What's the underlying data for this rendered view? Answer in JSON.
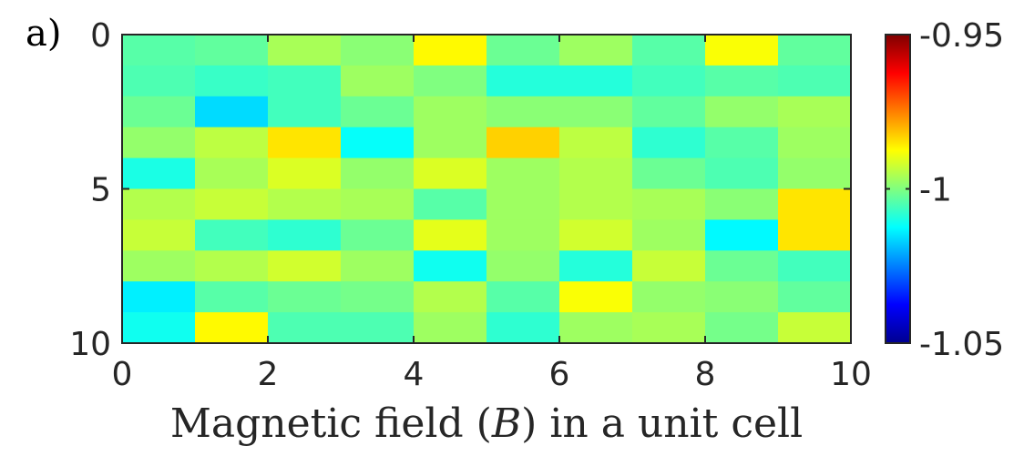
{
  "chart_data": {
    "type": "heatmap",
    "panel_label": "a)",
    "title": "",
    "xlabel": "Magnetic field ",
    "xlabel_var": "B",
    "xlabel_suffix": " in a unit cell",
    "xlim": [
      0,
      10
    ],
    "ylim": [
      0,
      10
    ],
    "y_reversed": true,
    "x_ticks": [
      "0",
      "2",
      "4",
      "6",
      "8",
      "10"
    ],
    "y_ticks": [
      "0",
      "5",
      "10"
    ],
    "colormap": "jet",
    "clim": [
      -1.05,
      -0.95
    ],
    "colorbar_ticks": [
      "-0.95",
      "-1",
      "-1.05"
    ],
    "grid": false,
    "values": [
      [
        -1.004,
        -1.003,
        -0.996,
        -0.999,
        -0.987,
        -1.002,
        -0.997,
        -1.004,
        -0.988,
        -1.003
      ],
      [
        -1.005,
        -1.007,
        -1.006,
        -0.997,
        -1.0,
        -1.009,
        -1.009,
        -1.006,
        -1.004,
        -1.005
      ],
      [
        -1.002,
        -1.016,
        -1.006,
        -1.002,
        -0.997,
        -0.999,
        -0.999,
        -1.003,
        -0.998,
        -0.996
      ],
      [
        -0.998,
        -0.994,
        -0.985,
        -1.012,
        -0.997,
        -0.983,
        -0.994,
        -1.008,
        -1.004,
        -0.997
      ],
      [
        -1.01,
        -0.996,
        -0.991,
        -0.998,
        -0.991,
        -0.997,
        -0.995,
        -1.002,
        -1.005,
        -0.998
      ],
      [
        -0.995,
        -0.993,
        -0.995,
        -0.996,
        -1.004,
        -0.997,
        -0.995,
        -0.996,
        -0.999,
        -0.985
      ],
      [
        -0.993,
        -1.006,
        -1.008,
        -1.002,
        -0.99,
        -0.997,
        -0.992,
        -0.997,
        -1.013,
        -0.985
      ],
      [
        -0.997,
        -0.995,
        -0.992,
        -0.997,
        -1.011,
        -0.998,
        -1.009,
        -0.993,
        -1.002,
        -1.006
      ],
      [
        -1.014,
        -1.004,
        -1.002,
        -1.001,
        -0.995,
        -1.004,
        -0.988,
        -0.998,
        -0.999,
        -1.003
      ],
      [
        -1.011,
        -0.987,
        -1.005,
        -1.005,
        -0.997,
        -1.008,
        -0.997,
        -0.996,
        -1.001,
        -0.993
      ]
    ]
  }
}
